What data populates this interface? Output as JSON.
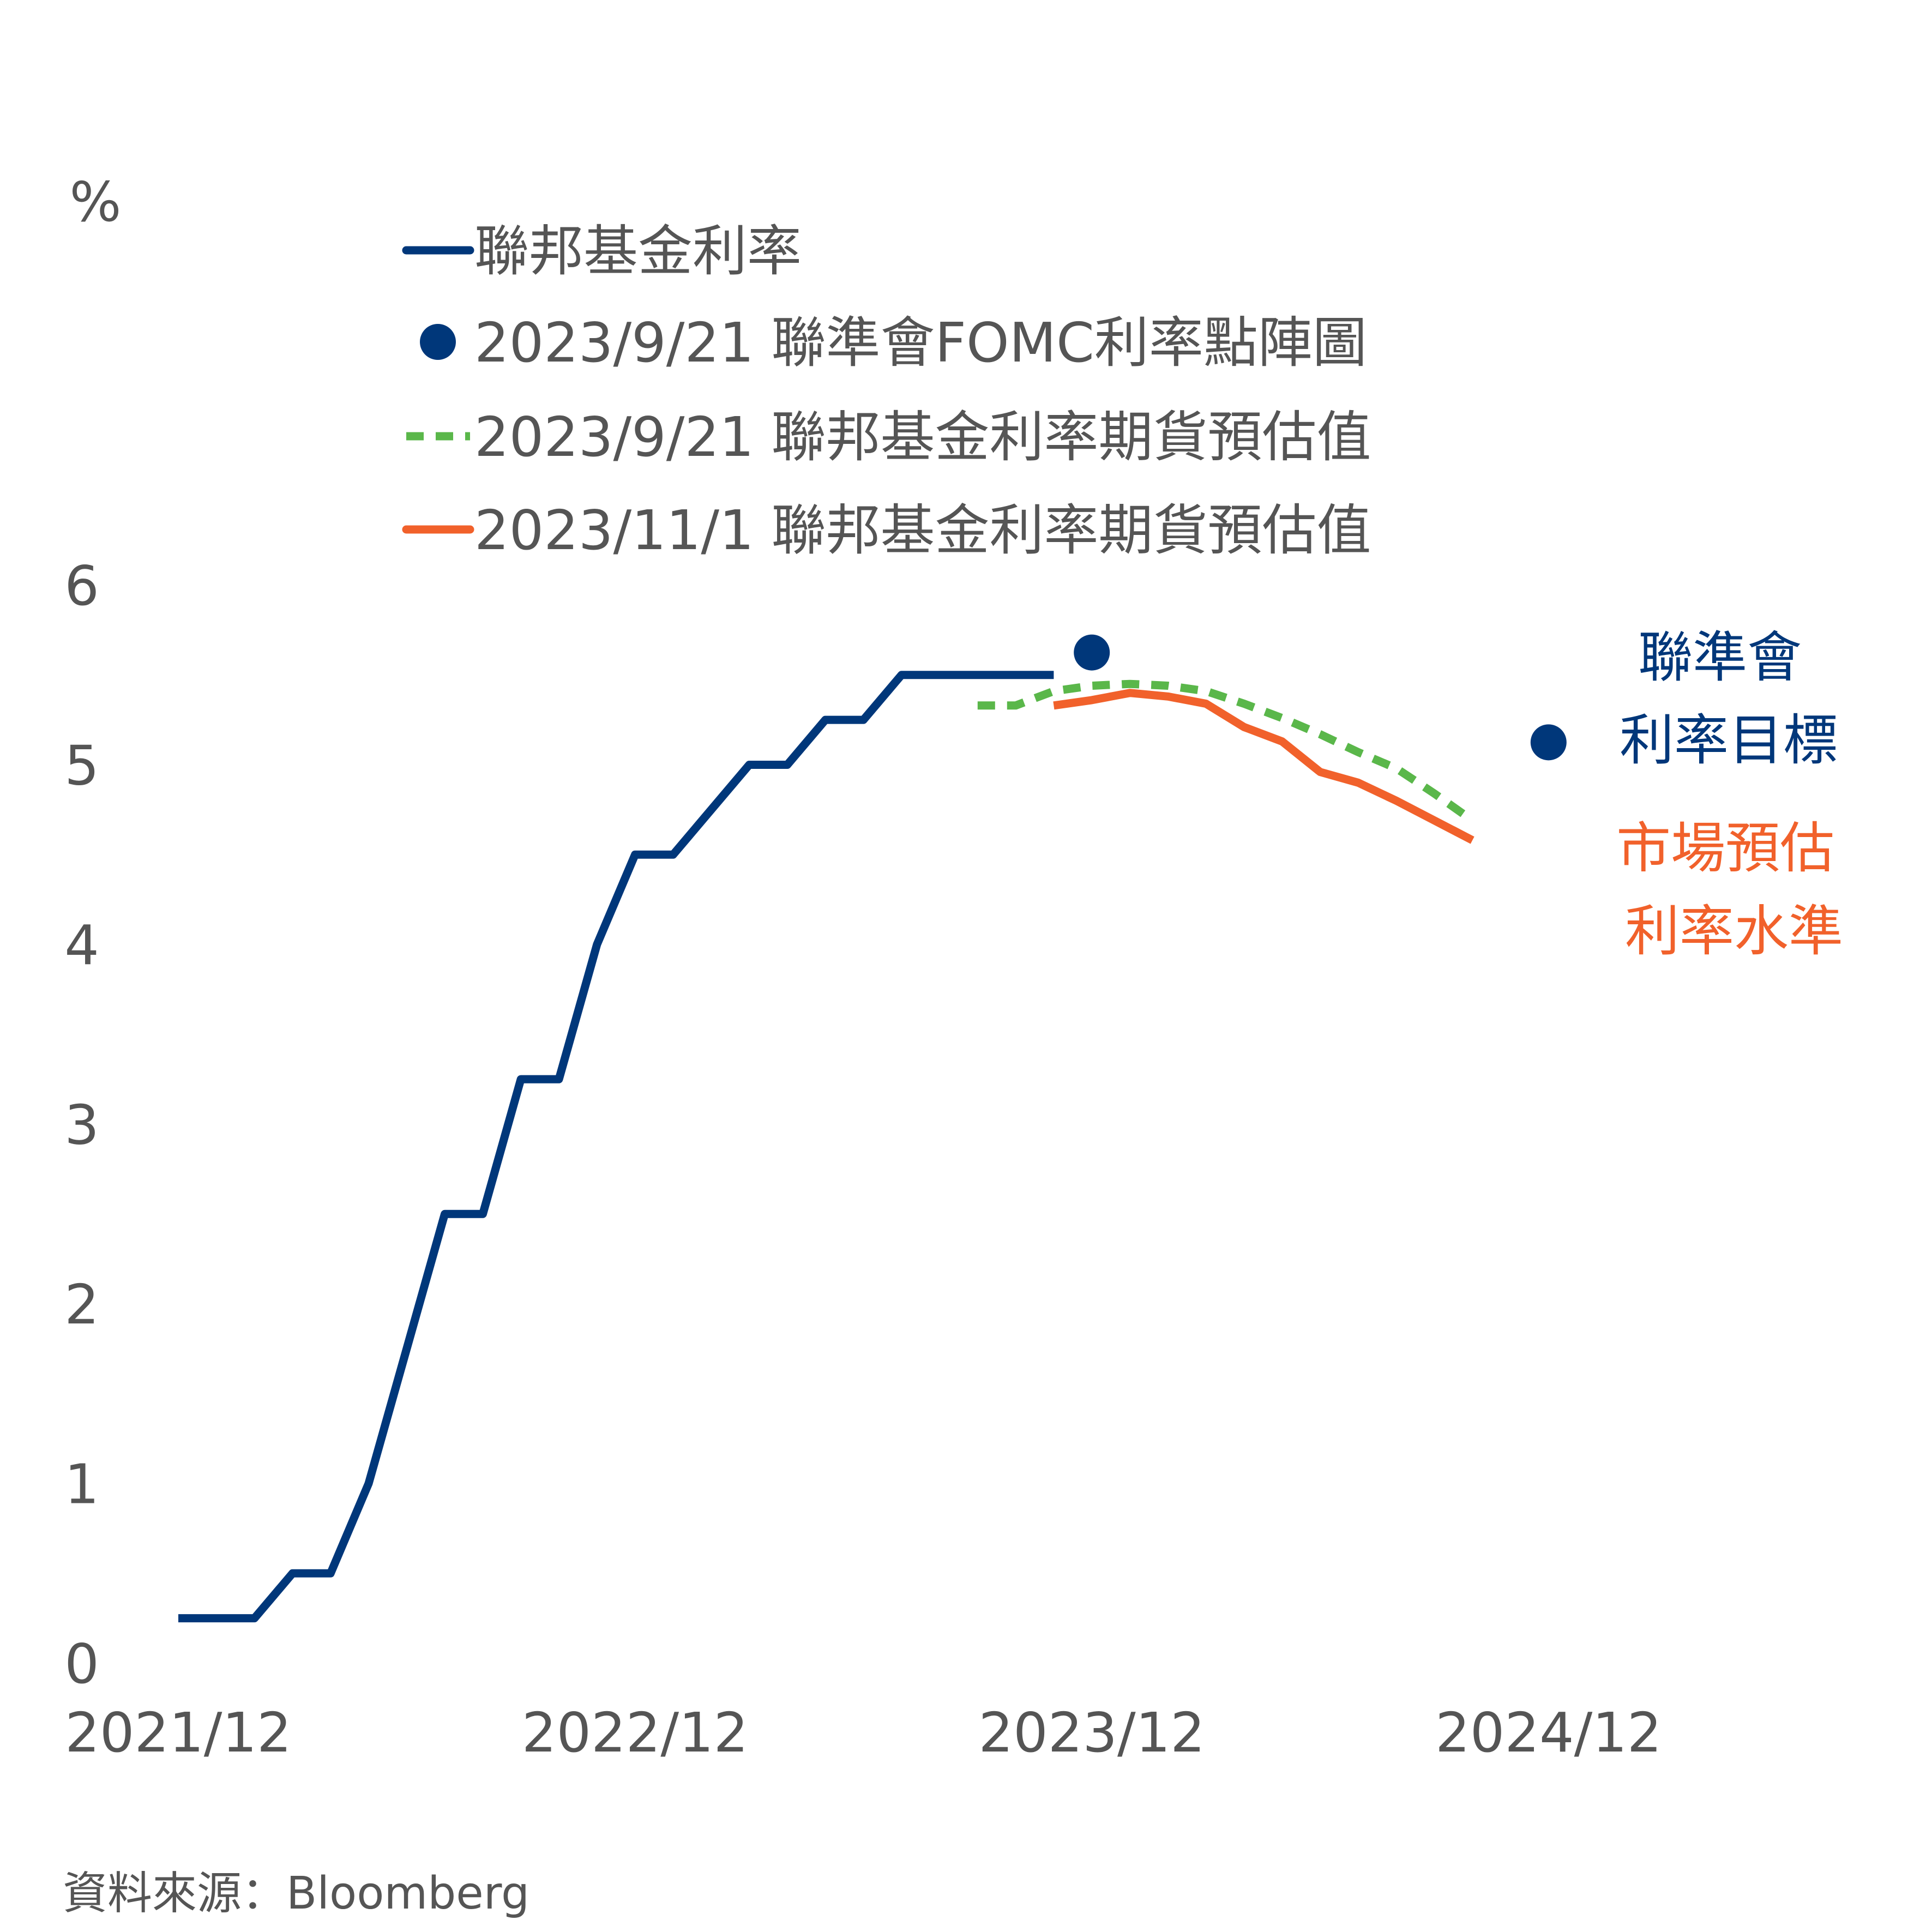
{
  "chart_data": {
    "type": "line",
    "ylabel": "%",
    "ylim": [
      0,
      6
    ],
    "yticks": [
      "0",
      "1",
      "2",
      "3",
      "4",
      "5",
      "6"
    ],
    "xticks": [
      {
        "label": "2021/12",
        "x": "2021-12"
      },
      {
        "label": "2022/12",
        "x": "2022-12"
      },
      {
        "label": "2023/12",
        "x": "2023-12"
      },
      {
        "label": "2024/12",
        "x": "2024-12"
      }
    ],
    "series": [
      {
        "name": "聯邦基金利率",
        "color": "#00377a",
        "style": "solid",
        "points": [
          [
            "2021-12",
            0.25
          ],
          [
            "2022-02",
            0.25
          ],
          [
            "2022-03",
            0.5
          ],
          [
            "2022-04",
            0.5
          ],
          [
            "2022-05",
            1.0
          ],
          [
            "2022-06",
            1.75
          ],
          [
            "2022-07",
            2.5
          ],
          [
            "2022-08",
            2.5
          ],
          [
            "2022-09",
            3.25
          ],
          [
            "2022-10",
            3.25
          ],
          [
            "2022-11",
            4.0
          ],
          [
            "2022-12",
            4.5
          ],
          [
            "2023-01",
            4.5
          ],
          [
            "2023-02",
            4.75
          ],
          [
            "2023-03",
            5.0
          ],
          [
            "2023-04",
            5.0
          ],
          [
            "2023-05",
            5.25
          ],
          [
            "2023-06",
            5.25
          ],
          [
            "2023-07",
            5.5
          ],
          [
            "2023-11",
            5.5
          ]
        ]
      },
      {
        "name": "2023/9/21 聯邦基金利率期貨預估值",
        "color": "#5ab74a",
        "style": "dashed",
        "points": [
          [
            "2023-09",
            5.33
          ],
          [
            "2023-10",
            5.33
          ],
          [
            "2023-11",
            5.41
          ],
          [
            "2023-12",
            5.44
          ],
          [
            "2024-01",
            5.45
          ],
          [
            "2024-02",
            5.44
          ],
          [
            "2024-03",
            5.41
          ],
          [
            "2024-04",
            5.34
          ],
          [
            "2024-05",
            5.26
          ],
          [
            "2024-06",
            5.17
          ],
          [
            "2024-07",
            5.07
          ],
          [
            "2024-08",
            4.98
          ],
          [
            "2024-09",
            4.84
          ],
          [
            "2024-10",
            4.69
          ]
        ]
      },
      {
        "name": "2023/11/1 聯邦基金利率期貨預估值",
        "color": "#f1612b",
        "style": "solid",
        "points": [
          [
            "2023-11",
            5.33
          ],
          [
            "2023-12",
            5.36
          ],
          [
            "2024-01",
            5.4
          ],
          [
            "2024-02",
            5.38
          ],
          [
            "2024-03",
            5.34
          ],
          [
            "2024-04",
            5.21
          ],
          [
            "2024-05",
            5.13
          ],
          [
            "2024-06",
            4.96
          ],
          [
            "2024-07",
            4.9
          ],
          [
            "2024-08",
            4.8
          ],
          [
            "2024-09",
            4.69
          ],
          [
            "2024-10",
            4.58
          ]
        ]
      }
    ],
    "dots": {
      "name": "2023/9/21 聯準會FOMC利率點陣圖",
      "color": "#00377a",
      "points": [
        [
          "2023-12",
          5.625
        ],
        [
          "2024-12",
          5.125
        ]
      ]
    },
    "legend": [
      {
        "label": "聯邦基金利率",
        "marker": "line",
        "color": "#00377a"
      },
      {
        "label": "2023/9/21 聯準會FOMC利率點陣圖",
        "marker": "dot",
        "color": "#00377a"
      },
      {
        "label": "2023/9/21 聯邦基金利率期貨預估值",
        "marker": "dashed",
        "color": "#5ab74a"
      },
      {
        "label": "2023/11/1 聯邦基金利率期貨預估值",
        "marker": "line",
        "color": "#f1612b"
      }
    ],
    "legend_position": "top",
    "annotations": [
      {
        "lines": [
          "聯準會",
          "利率目標"
        ],
        "color": "#00377a"
      },
      {
        "lines": [
          "市場預估",
          "利率水準"
        ],
        "color": "#f1612b"
      }
    ]
  },
  "source": "資料來源：Bloomberg"
}
